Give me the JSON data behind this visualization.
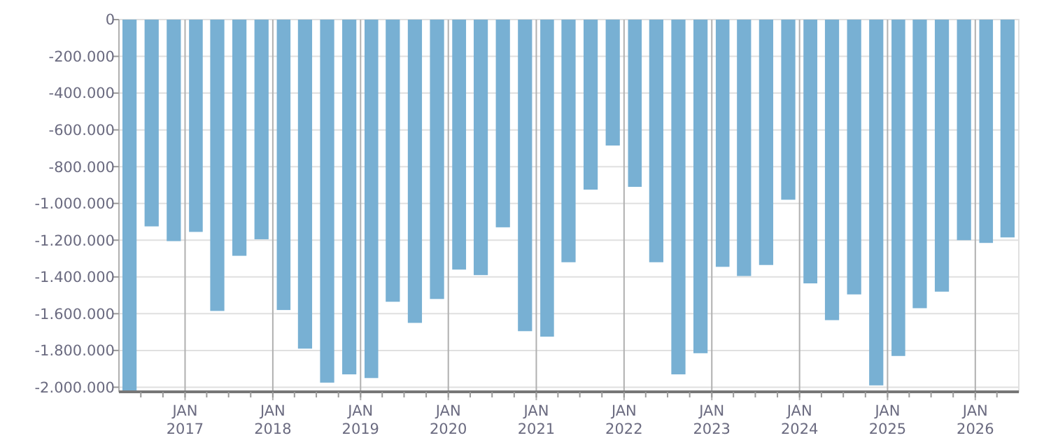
{
  "chart_data": {
    "type": "bar",
    "color": "#78b0d3",
    "x": [
      "2016-05-15",
      "2016-08-15",
      "2016-11-15",
      "2017-02-15",
      "2017-05-15",
      "2017-08-15",
      "2017-11-15",
      "2018-02-15",
      "2018-05-15",
      "2018-08-15",
      "2018-11-15",
      "2019-02-15",
      "2019-05-15",
      "2019-08-15",
      "2019-11-15",
      "2020-02-15",
      "2020-05-15",
      "2020-08-15",
      "2020-11-15",
      "2021-02-15",
      "2021-05-15",
      "2021-08-15",
      "2021-11-15",
      "2022-02-15",
      "2022-05-15",
      "2022-08-15",
      "2022-11-15",
      "2023-02-15",
      "2023-05-15",
      "2023-08-15",
      "2023-11-15",
      "2024-02-15",
      "2024-05-15",
      "2024-08-15",
      "2024-11-15",
      "2025-02-15",
      "2025-05-15",
      "2025-08-15",
      "2025-11-15",
      "2026-02-15",
      "2026-05-15"
    ],
    "values": [
      -2020000,
      -1125000,
      -1205000,
      -1155000,
      -1585000,
      -1285000,
      -1195000,
      -1580000,
      -1790000,
      -1975000,
      -1930000,
      -1950000,
      -1535000,
      -1650000,
      -1520000,
      -1360000,
      -1390000,
      -1130000,
      -1695000,
      -1725000,
      -1320000,
      -925000,
      -685000,
      -910000,
      -1320000,
      -1930000,
      -1815000,
      -1345000,
      -1395000,
      -1335000,
      -980000,
      -1435000,
      -1635000,
      -1495000,
      -1990000,
      -1830000,
      -1570000,
      -1480000,
      -1200000,
      -1215000,
      -1185000
    ],
    "xlim": [
      "2016-04",
      "2026-07"
    ],
    "xticks": [
      {
        "value": "2016-07",
        "label": null
      },
      {
        "value": "2016-10",
        "label": null
      },
      {
        "value": "2017-01",
        "label": "JAN 2017"
      },
      {
        "value": "2017-04",
        "label": null
      },
      {
        "value": "2017-07",
        "label": null
      },
      {
        "value": "2017-10",
        "label": null
      },
      {
        "value": "2018-01",
        "label": "JAN 2018"
      },
      {
        "value": "2018-04",
        "label": null
      },
      {
        "value": "2018-07",
        "label": null
      },
      {
        "value": "2018-10",
        "label": null
      },
      {
        "value": "2019-01",
        "label": "JAN 2019"
      },
      {
        "value": "2019-04",
        "label": null
      },
      {
        "value": "2019-07",
        "label": null
      },
      {
        "value": "2019-10",
        "label": null
      },
      {
        "value": "2020-01",
        "label": "JAN 2020"
      },
      {
        "value": "2020-04",
        "label": null
      },
      {
        "value": "2020-07",
        "label": null
      },
      {
        "value": "2020-10",
        "label": null
      },
      {
        "value": "2021-01",
        "label": "JAN 2021"
      },
      {
        "value": "2021-04",
        "label": null
      },
      {
        "value": "2021-07",
        "label": null
      },
      {
        "value": "2021-10",
        "label": null
      },
      {
        "value": "2022-01",
        "label": "JAN 2022"
      },
      {
        "value": "2022-04",
        "label": null
      },
      {
        "value": "2022-07",
        "label": null
      },
      {
        "value": "2022-10",
        "label": null
      },
      {
        "value": "2023-01",
        "label": "JAN 2023"
      },
      {
        "value": "2023-04",
        "label": null
      },
      {
        "value": "2023-07",
        "label": null
      },
      {
        "value": "2023-10",
        "label": null
      },
      {
        "value": "2024-01",
        "label": "JAN 2024"
      },
      {
        "value": "2024-04",
        "label": null
      },
      {
        "value": "2024-07",
        "label": null
      },
      {
        "value": "2024-10",
        "label": null
      },
      {
        "value": "2025-01",
        "label": "JAN 2025"
      },
      {
        "value": "2025-04",
        "label": null
      },
      {
        "value": "2025-07",
        "label": null
      },
      {
        "value": "2025-10",
        "label": null
      },
      {
        "value": "2026-01",
        "label": "JAN 2026"
      },
      {
        "value": "2026-04",
        "label": null
      }
    ],
    "ylim": [
      -2025000,
      0
    ],
    "yticks": [
      0,
      {
        "value": -200000,
        "label": "-200.000"
      },
      {
        "value": -400000,
        "label": "-400.000"
      },
      {
        "value": -600000,
        "label": "-600.000"
      },
      {
        "value": -800000,
        "label": "-800.000"
      },
      {
        "value": -1000000,
        "label": "-1.000.000"
      },
      {
        "value": -1200000,
        "label": "-1.200.000"
      },
      {
        "value": -1400000,
        "label": "-1.400.000"
      },
      {
        "value": -1600000,
        "label": "-1.600.000"
      },
      {
        "value": -1800000,
        "label": "-1.800.000"
      },
      {
        "value": -2000000,
        "label": "-2.000.000"
      }
    ],
    "grid": true
  }
}
